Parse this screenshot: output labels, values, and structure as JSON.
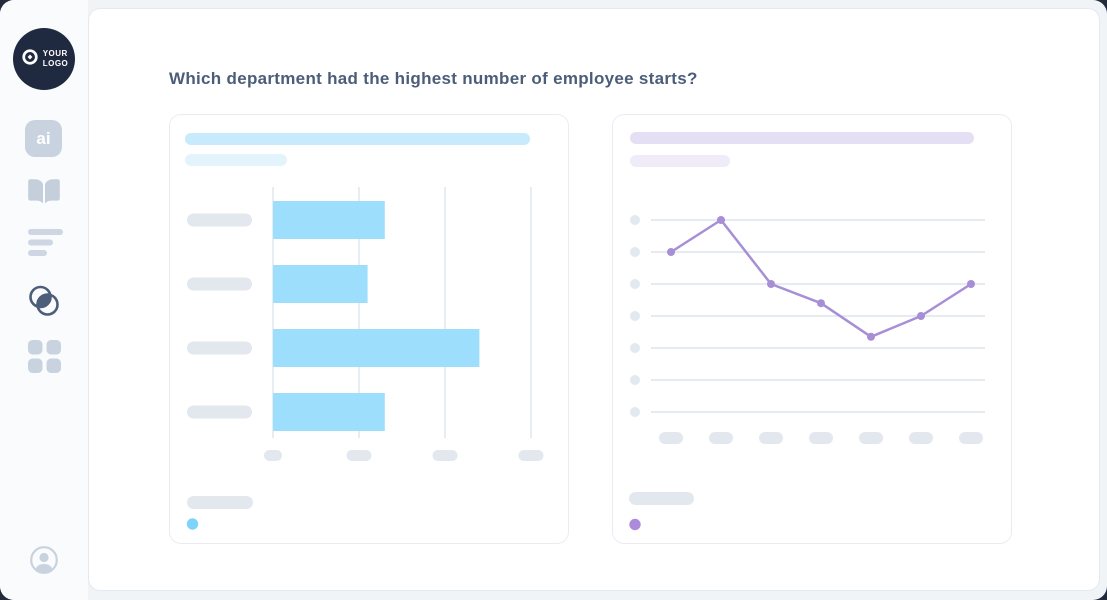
{
  "page": {
    "title": "Which department had the highest number of employee starts?",
    "title_color": "#4C5D79"
  },
  "sidebar": {
    "logo": {
      "text_line1": "YOUR",
      "text_line2": "LOGO",
      "background": "#1F2A40"
    },
    "items": [
      {
        "icon": "ai-badge-icon",
        "label": "ai",
        "active": false
      },
      {
        "icon": "open-book-icon",
        "active": false
      },
      {
        "icon": "text-lines-icon",
        "active": false
      },
      {
        "icon": "venn-diagram-icon",
        "active": true
      },
      {
        "icon": "grid-icon",
        "active": false
      }
    ],
    "footer_icon": "user-avatar-icon",
    "icon_color_muted": "#C8D2DF",
    "icon_color_active": "#4C5E79"
  },
  "cards": [
    {
      "name": "bar-chart-card",
      "title_is_placeholder_pill": true,
      "subtitle_is_placeholder_pill": true,
      "legend_label_is_placeholder_pill": true
    },
    {
      "name": "line-chart-card",
      "title_is_placeholder_pill": true,
      "subtitle_is_placeholder_pill": true,
      "legend_label_is_placeholder_pill": true
    }
  ],
  "chart_data": [
    {
      "type": "bar",
      "orientation": "horizontal",
      "title": "",
      "categories": [
        "",
        "",
        "",
        ""
      ],
      "values": [
        1.3,
        1.1,
        2.4,
        1.3
      ],
      "xlim": [
        0,
        3
      ],
      "x_gridlines": [
        0,
        1,
        2,
        3
      ],
      "grid": true,
      "labels_redacted_as_pills": true,
      "bar_color": "#9DDEFC",
      "gridline_color": "#E8EDF3",
      "placeholder_pill_color": "#E3E8EF",
      "legend_marker_color": "#7ED3F9",
      "legend_position": "bottom-left"
    },
    {
      "type": "line",
      "title": "",
      "x": [
        1,
        2,
        3,
        4,
        5,
        6,
        7
      ],
      "values": [
        5.0,
        6.0,
        4.0,
        3.4,
        2.35,
        3.0,
        4.0
      ],
      "ylim": [
        0,
        6
      ],
      "y_gridlines": [
        0,
        1,
        2,
        3,
        4,
        5,
        6
      ],
      "grid": true,
      "labels_redacted_as_pills": true,
      "line_color": "#A78FD6",
      "marker": "circle",
      "gridline_color": "#D7DFE9",
      "axis_dot_color": "#E3E9F0",
      "placeholder_pill_color": "#E3E8EF",
      "legend_marker_color": "#AC8CDA",
      "legend_position": "bottom-left"
    }
  ]
}
